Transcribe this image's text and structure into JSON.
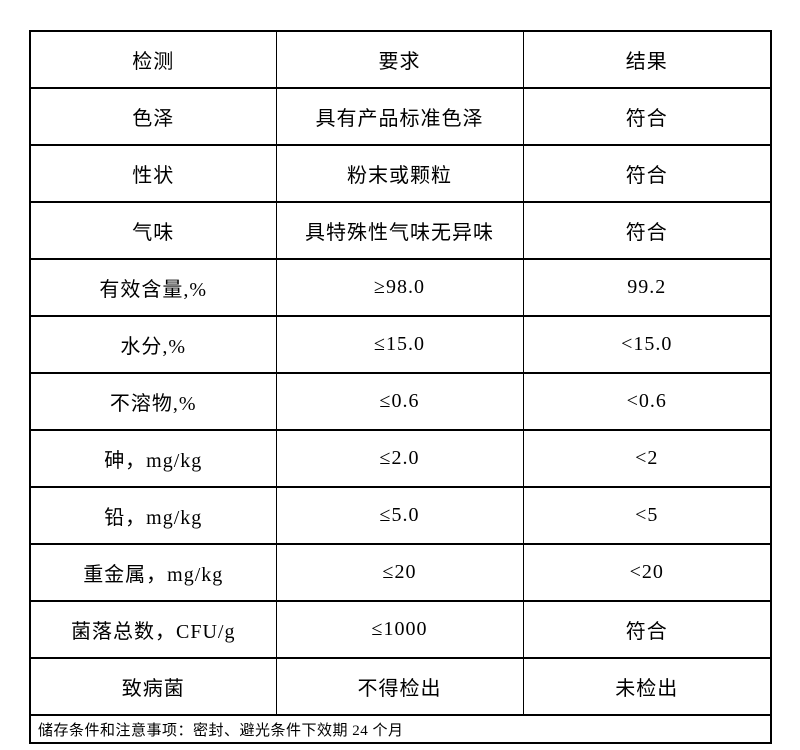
{
  "page": {
    "background_color": "#ffffff",
    "border_color": "#000000",
    "text_color": "#000000"
  },
  "table": {
    "headers": [
      "检测",
      "要求",
      "结果"
    ],
    "rows": [
      {
        "test": "色泽",
        "requirement": "具有产品标准色泽",
        "result": "符合"
      },
      {
        "test": "性状",
        "requirement": "粉末或颗粒",
        "result": "符合"
      },
      {
        "test": "气味",
        "requirement": "具特殊性气味无异味",
        "result": "符合"
      },
      {
        "test": "有效含量,%",
        "requirement": "≥98.0",
        "result": "99.2"
      },
      {
        "test": "水分,%",
        "requirement": "≤15.0",
        "result": "<15.0"
      },
      {
        "test": "不溶物,%",
        "requirement": "≤0.6",
        "result": "<0.6"
      },
      {
        "test": "砷，mg/kg",
        "requirement": "≤2.0",
        "result": "<2"
      },
      {
        "test": "铅，mg/kg",
        "requirement": "≤5.0",
        "result": "<5"
      },
      {
        "test": "重金属，mg/kg",
        "requirement": "≤20",
        "result": "<20"
      },
      {
        "test": "菌落总数，CFU/g",
        "requirement": "≤1000",
        "result": "符合"
      },
      {
        "test": "致病菌",
        "requirement": "不得检出",
        "result": "未检出"
      }
    ],
    "footer_note": "储存条件和注意事项：密封、避光条件下效期 24 个月"
  }
}
